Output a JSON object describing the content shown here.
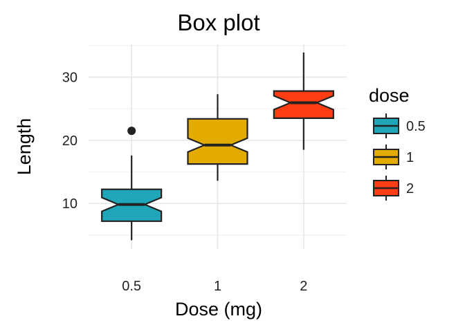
{
  "chart_data": {
    "type": "box",
    "title": "Box plot",
    "xlabel": "Dose (mg)",
    "ylabel": "Length",
    "categories": [
      "0.5",
      "1",
      "2"
    ],
    "ylim": [
      2.8,
      35.2
    ],
    "yticks": [
      10,
      20,
      30
    ],
    "grid": true,
    "notched": true,
    "boxes": [
      {
        "category": "0.5",
        "min": 4.2,
        "q1": 7.2,
        "median": 9.85,
        "q3": 12.25,
        "max": 17.6,
        "outliers": [
          21.5
        ],
        "color": "#1fa6b8"
      },
      {
        "category": "1",
        "min": 13.6,
        "q1": 16.25,
        "median": 19.25,
        "q3": 23.4,
        "max": 27.3,
        "outliers": [],
        "color": "#e3aa00"
      },
      {
        "category": "2",
        "min": 18.5,
        "q1": 23.5,
        "median": 25.95,
        "q3": 27.8,
        "max": 33.9,
        "outliers": [],
        "color": "#ff3d14"
      }
    ],
    "legend": {
      "title": "dose",
      "position": "right",
      "entries": [
        {
          "label": "0.5",
          "color": "#1fa6b8"
        },
        {
          "label": "1",
          "color": "#e3aa00"
        },
        {
          "label": "2",
          "color": "#ff3d14"
        }
      ]
    }
  }
}
